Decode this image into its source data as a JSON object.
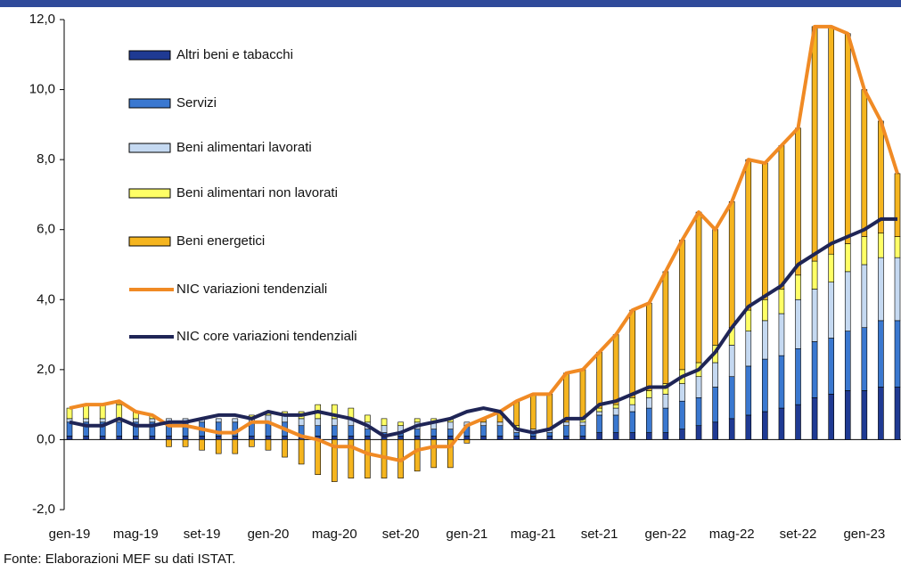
{
  "chart_data": {
    "type": "bar",
    "stacked": true,
    "source": "Fonte: Elaborazioni MEF su dati ISTAT.",
    "categories": [
      "gen-19",
      null,
      null,
      null,
      "mag-19",
      null,
      null,
      null,
      "set-19",
      null,
      null,
      null,
      "gen-20",
      null,
      null,
      null,
      "mag-20",
      null,
      null,
      null,
      "set-20",
      null,
      null,
      null,
      "gen-21",
      null,
      null,
      null,
      "mag-21",
      null,
      null,
      null,
      "set-21",
      null,
      null,
      null,
      "gen-22",
      null,
      null,
      null,
      "mag-22",
      null,
      null,
      null,
      "set-22",
      null,
      null,
      null,
      "gen-23",
      null,
      null
    ],
    "ylim": [
      -2,
      12
    ],
    "yticks": [
      {
        "value": -2,
        "label": "-2,0"
      },
      {
        "value": 0,
        "label": "0,0"
      },
      {
        "value": 2,
        "label": "2,0"
      },
      {
        "value": 4,
        "label": "4,0"
      },
      {
        "value": 6,
        "label": "6,0"
      },
      {
        "value": 8,
        "label": "8,0"
      },
      {
        "value": 10,
        "label": "10,0"
      },
      {
        "value": 12,
        "label": "12,0"
      }
    ],
    "series": [
      {
        "name": "Altri beni e tabacchi",
        "type": "bar",
        "color": "#1f3a93",
        "values": [
          0.1,
          0.1,
          0.1,
          0.1,
          0.1,
          0.1,
          0.1,
          0.1,
          0.1,
          0.1,
          0.1,
          0.1,
          0.1,
          0.1,
          0.1,
          0.1,
          0.1,
          0.1,
          0.1,
          0.1,
          0.1,
          0.1,
          0.1,
          0.1,
          0.1,
          0.1,
          0.1,
          0.1,
          0.1,
          0.1,
          0.1,
          0.1,
          0.2,
          0.2,
          0.2,
          0.2,
          0.2,
          0.3,
          0.4,
          0.5,
          0.6,
          0.7,
          0.8,
          0.9,
          1.0,
          1.2,
          1.3,
          1.4,
          1.4,
          1.5,
          1.5
        ]
      },
      {
        "name": "Servizi",
        "type": "bar",
        "color": "#3a78d0",
        "values": [
          0.4,
          0.4,
          0.4,
          0.4,
          0.4,
          0.4,
          0.4,
          0.4,
          0.4,
          0.4,
          0.4,
          0.4,
          0.4,
          0.4,
          0.3,
          0.3,
          0.3,
          0.3,
          0.2,
          0.1,
          0.1,
          0.2,
          0.2,
          0.2,
          0.3,
          0.3,
          0.3,
          0.1,
          0.1,
          0.1,
          0.3,
          0.3,
          0.5,
          0.5,
          0.6,
          0.7,
          0.7,
          0.8,
          0.8,
          1.0,
          1.2,
          1.4,
          1.5,
          1.5,
          1.6,
          1.6,
          1.6,
          1.7,
          1.8,
          1.9,
          1.9
        ]
      },
      {
        "name": "Beni alimentari lavorati",
        "type": "bar",
        "color": "#c5d9f1",
        "values": [
          0.1,
          0.1,
          0.1,
          0.1,
          0.1,
          0.1,
          0.1,
          0.1,
          0.1,
          0.1,
          0.1,
          0.1,
          0.2,
          0.2,
          0.2,
          0.2,
          0.2,
          0.2,
          0.2,
          0.2,
          0.2,
          0.2,
          0.2,
          0.2,
          0.1,
          0.1,
          0.1,
          0.1,
          0.1,
          0.1,
          0.1,
          0.1,
          0.1,
          0.2,
          0.2,
          0.3,
          0.4,
          0.5,
          0.6,
          0.7,
          0.9,
          1.0,
          1.1,
          1.2,
          1.4,
          1.5,
          1.6,
          1.7,
          1.8,
          1.8,
          1.8
        ]
      },
      {
        "name": "Beni alimentari non lavorati",
        "type": "bar",
        "color": "#ffff66",
        "values": [
          0.3,
          0.4,
          0.4,
          0.4,
          0.2,
          0.1,
          0.0,
          0.0,
          0.0,
          0.0,
          0.0,
          0.1,
          0.1,
          0.1,
          0.2,
          0.4,
          0.4,
          0.3,
          0.2,
          0.2,
          0.1,
          0.1,
          0.1,
          0.1,
          0.0,
          0.0,
          0.0,
          0.1,
          0.0,
          0.0,
          0.0,
          0.1,
          0.1,
          0.1,
          0.2,
          0.2,
          0.3,
          0.4,
          0.4,
          0.5,
          0.5,
          0.6,
          0.6,
          0.7,
          0.7,
          0.8,
          0.8,
          0.8,
          0.8,
          0.7,
          0.6
        ]
      },
      {
        "name": "Beni energetici",
        "type": "bar",
        "color": "#f5b51f",
        "values": [
          0.0,
          0.0,
          0.0,
          0.1,
          0.0,
          0.0,
          -0.2,
          -0.2,
          -0.3,
          -0.4,
          -0.4,
          -0.2,
          -0.3,
          -0.5,
          -0.7,
          -1.0,
          -1.2,
          -1.1,
          -1.1,
          -1.1,
          -1.1,
          -0.9,
          -0.8,
          -0.8,
          -0.1,
          0.1,
          0.3,
          0.7,
          1.0,
          1.0,
          1.4,
          1.4,
          1.6,
          2.0,
          2.5,
          2.5,
          3.2,
          3.7,
          4.3,
          3.3,
          3.6,
          4.3,
          3.9,
          4.1,
          4.2,
          6.7,
          6.5,
          6.0,
          4.2,
          3.2,
          1.8
        ]
      },
      {
        "name": "NIC variazioni tendenziali",
        "type": "line",
        "color": "#f08a24",
        "values": [
          0.9,
          1.0,
          1.0,
          1.1,
          0.8,
          0.7,
          0.4,
          0.4,
          0.3,
          0.2,
          0.2,
          0.5,
          0.5,
          0.3,
          0.1,
          0.0,
          -0.2,
          -0.2,
          -0.4,
          -0.5,
          -0.6,
          -0.3,
          -0.2,
          -0.2,
          0.4,
          0.6,
          0.8,
          1.1,
          1.3,
          1.3,
          1.9,
          2.0,
          2.5,
          3.0,
          3.7,
          3.9,
          4.8,
          5.7,
          6.5,
          6.0,
          6.8,
          8.0,
          7.9,
          8.4,
          8.9,
          11.8,
          11.8,
          11.6,
          10.0,
          9.1,
          7.6
        ]
      },
      {
        "name": "NIC core variazioni tendenziali",
        "type": "line",
        "color": "#1f2556",
        "values": [
          0.5,
          0.4,
          0.4,
          0.6,
          0.4,
          0.4,
          0.5,
          0.5,
          0.6,
          0.7,
          0.7,
          0.6,
          0.8,
          0.7,
          0.7,
          0.8,
          0.7,
          0.6,
          0.4,
          0.1,
          0.2,
          0.4,
          0.5,
          0.6,
          0.8,
          0.9,
          0.8,
          0.3,
          0.2,
          0.3,
          0.6,
          0.6,
          1.0,
          1.1,
          1.3,
          1.5,
          1.5,
          1.8,
          2.0,
          2.5,
          3.2,
          3.8,
          4.1,
          4.4,
          5.0,
          5.3,
          5.6,
          5.8,
          6.0,
          6.3,
          6.3
        ]
      }
    ]
  }
}
